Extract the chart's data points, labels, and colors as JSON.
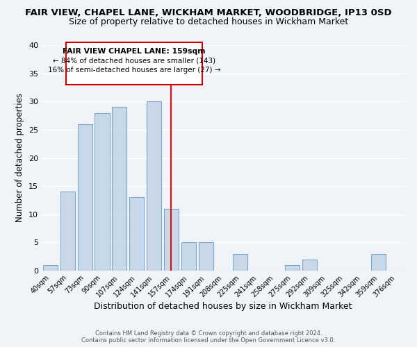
{
  "title": "FAIR VIEW, CHAPEL LANE, WICKHAM MARKET, WOODBRIDGE, IP13 0SD",
  "subtitle": "Size of property relative to detached houses in Wickham Market",
  "xlabel": "Distribution of detached houses by size in Wickham Market",
  "ylabel": "Number of detached properties",
  "bar_labels": [
    "40sqm",
    "57sqm",
    "73sqm",
    "90sqm",
    "107sqm",
    "124sqm",
    "141sqm",
    "157sqm",
    "174sqm",
    "191sqm",
    "208sqm",
    "225sqm",
    "241sqm",
    "258sqm",
    "275sqm",
    "292sqm",
    "309sqm",
    "325sqm",
    "342sqm",
    "359sqm",
    "376sqm"
  ],
  "bar_values": [
    1,
    14,
    26,
    28,
    29,
    13,
    30,
    11,
    5,
    5,
    0,
    3,
    0,
    0,
    1,
    2,
    0,
    0,
    0,
    3,
    0
  ],
  "bar_color": "#c8d8e8",
  "bar_edgecolor": "#7ca8c8",
  "highlight_index": 7,
  "highlight_color": "#ff0000",
  "ylim": [
    0,
    40
  ],
  "yticks": [
    0,
    5,
    10,
    15,
    20,
    25,
    30,
    35,
    40
  ],
  "annotation_title": "FAIR VIEW CHAPEL LANE: 159sqm",
  "annotation_line1": "← 84% of detached houses are smaller (143)",
  "annotation_line2": "16% of semi-detached houses are larger (27) →",
  "annotation_box_edgecolor": "#cc0000",
  "footer_line1": "Contains HM Land Registry data © Crown copyright and database right 2024.",
  "footer_line2": "Contains public sector information licensed under the Open Government Licence v3.0.",
  "background_color": "#f0f4f8",
  "grid_color": "#ffffff",
  "title_fontsize": 9.5,
  "subtitle_fontsize": 9.0,
  "xlabel_fontsize": 9,
  "ylabel_fontsize": 8.5
}
